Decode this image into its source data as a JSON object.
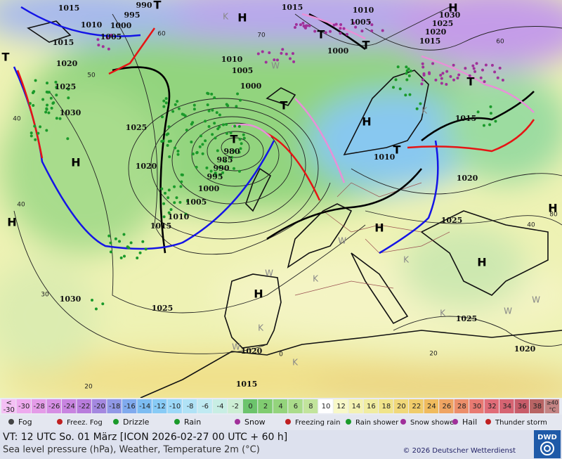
{
  "map": {
    "isobar_labels": [
      "1015",
      "990",
      "995",
      "1010",
      "1000",
      "1005",
      "1015",
      "1020",
      "1025",
      "1030",
      "1025",
      "1020",
      "1010",
      "1005",
      "1000",
      "980",
      "985",
      "990",
      "995",
      "1000",
      "1005",
      "1010",
      "1015",
      "1030",
      "1025",
      "1015",
      "1010",
      "1005",
      "1000",
      "1030",
      "1025",
      "1020",
      "1015",
      "1015",
      "1010",
      "1020",
      "1025",
      "1025",
      "1020",
      "1020",
      "1015"
    ],
    "pressure_centers": [
      "H",
      "H",
      "H",
      "T",
      "T",
      "T",
      "T",
      "T",
      "T",
      "T",
      "T",
      "H",
      "H",
      "H",
      "H",
      "H",
      "H"
    ],
    "temperature_labels": [
      "60",
      "70",
      "50",
      "40",
      "40",
      "30",
      "20",
      "0",
      "20",
      "40",
      "60",
      "80"
    ],
    "weather_letters": [
      "K",
      "K",
      "W",
      "W",
      "W",
      "K",
      "W",
      "K",
      "K",
      "W",
      "W",
      "K",
      "K"
    ]
  },
  "temperature_scale": {
    "first": {
      "top": "<",
      "bottom": "-30"
    },
    "labels": [
      "-30",
      "-28",
      "-26",
      "-24",
      "-22",
      "-20",
      "-18",
      "-16",
      "-14",
      "-12",
      "-10",
      "-8",
      "-6",
      "-4",
      "-2",
      "0",
      "2",
      "4",
      "6",
      "8",
      "10",
      "12",
      "14",
      "16",
      "18",
      "20",
      "22",
      "24",
      "26",
      "28",
      "30",
      "32",
      "34",
      "36",
      "38"
    ],
    "colors": [
      "#eeaaee",
      "#e49ce8",
      "#d68ee4",
      "#c884e0",
      "#b87cdc",
      "#a488e0",
      "#9098e6",
      "#80aaee",
      "#7cbcf2",
      "#88cbf6",
      "#9cd8f8",
      "#b0e2f6",
      "#c0eaf2",
      "#c8eee4",
      "#cdeed4",
      "#6cc46c",
      "#80cc70",
      "#94d47c",
      "#aadc8a",
      "#c2e49c",
      "#ffffff",
      "#f8f8c8",
      "#f4f2b2",
      "#f0eca0",
      "#f0e48a",
      "#f0d87a",
      "#f0cc6a",
      "#f0bb5e",
      "#efa462",
      "#ec8e6a",
      "#e87a72",
      "#e06c78",
      "#d66472",
      "#c85c6a",
      "#b86464"
    ],
    "first_color": "#f4c0f4",
    "last": {
      "top": "≥40",
      "bottom": "°C"
    },
    "last_color": "#c48484"
  },
  "weather_legend": [
    "Fog",
    "Freez. Fog",
    "Drizzle",
    "Rain",
    "Snow",
    "Freezing rain",
    "Rain shower",
    "Snow shower",
    "Hail",
    "Thunder storm"
  ],
  "footer": {
    "valid_time": "VT: 12 UTC So.  01 März [ICON 2026-02-27  00 UTC + 60 h]",
    "description": "Sea level pressure (hPa), Weather, Temperature 2m (°C)",
    "copyright": "© 2026 Deutscher Wetterdienst",
    "logo": "DWD"
  }
}
